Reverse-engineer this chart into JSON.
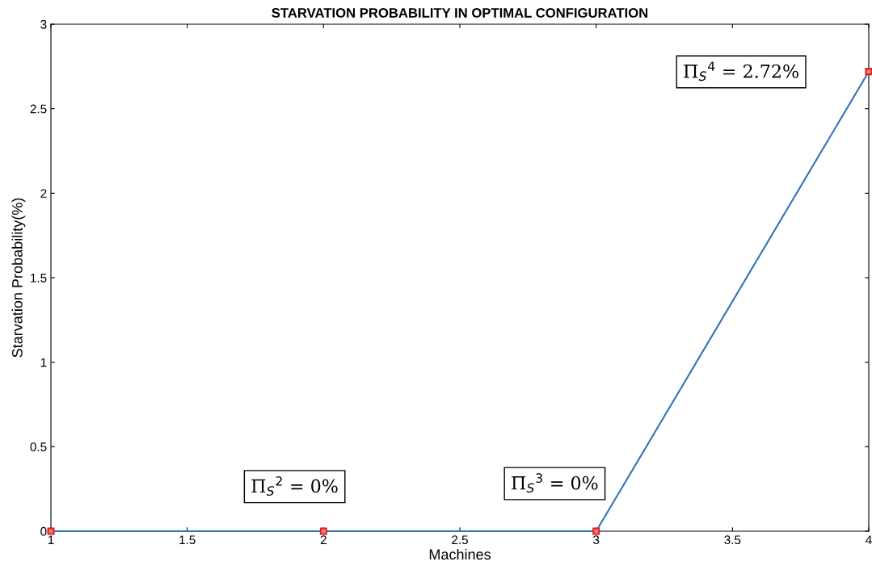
{
  "chart_data": {
    "type": "line",
    "title": "STARVATION PROBABILITY IN OPTIMAL CONFIGURATION",
    "xlabel": "Machines",
    "ylabel": "Starvation Probability(%)",
    "x": [
      1,
      2,
      3,
      4
    ],
    "series": [
      {
        "color": "#2e73b8",
        "values": [
          0,
          0,
          0,
          2.72
        ]
      }
    ],
    "marker": "square",
    "line_style": "solid",
    "grid": false,
    "xlim": [
      1,
      4
    ],
    "xticks": [
      1,
      1.5,
      2,
      2.5,
      3,
      3.5,
      4
    ],
    "ylim": [
      0,
      3
    ],
    "yticks": [
      0,
      0.5,
      1,
      1.5,
      2,
      2.5,
      3
    ],
    "annotations": [
      "Π$_{S}$$^{2}$ = 0%",
      "Π$_{S}$$^{3}$ = 0%",
      "Π$_{S}$$^{4}$ = 2.72%"
    ]
  }
}
